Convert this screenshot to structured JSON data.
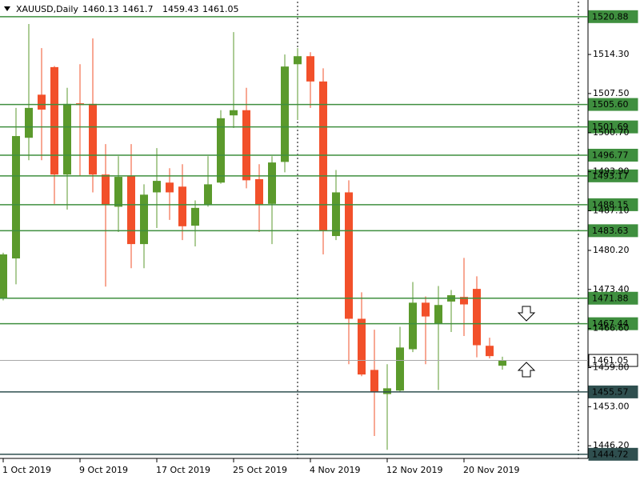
{
  "chart_data": {
    "type": "candlestick",
    "title": "XAUUSD,Daily",
    "categories": [
      "1 Oct 2019",
      null,
      null,
      null,
      null,
      null,
      "9 Oct 2019",
      null,
      null,
      null,
      null,
      null,
      "17 Oct 2019",
      null,
      null,
      null,
      null,
      null,
      "25 Oct 2019",
      null,
      null,
      null,
      null,
      null,
      "4 Nov 2019",
      null,
      null,
      null,
      null,
      null,
      "12 Nov 2019",
      null,
      null,
      null,
      null,
      null,
      "20 Nov 2019",
      null,
      null,
      null
    ],
    "open": [
      1471.9,
      1478.8,
      1499.8,
      1507.3,
      1512.1,
      1493.4,
      1505.8,
      1505.7,
      1493.4,
      1487.8,
      1493.1,
      1481.3,
      1490.3,
      1492.0,
      1491.3,
      1484.5,
      1488.1,
      1492.0,
      1503.7,
      1504.6,
      1492.6,
      1488.3,
      1495.6,
      1512.6,
      1514.0,
      1509.6,
      1482.7,
      1490.3,
      1468.3,
      1459.4,
      1455.2,
      1455.8,
      1463.0,
      1471.1,
      1467.4,
      1471.3,
      1472.1,
      1473.5,
      1463.6,
      1460.13
    ],
    "high": [
      1479.8,
      1505.0,
      1519.6,
      1515.4,
      1512.3,
      1508.5,
      1512.6,
      1517.1,
      1498.7,
      1496.6,
      1498.7,
      1491.7,
      1498.0,
      1494.5,
      1495.2,
      1488.9,
      1496.6,
      1504.6,
      1518.2,
      1508.5,
      1495.2,
      1496.6,
      1514.3,
      1515.4,
      1514.7,
      1511.9,
      1494.2,
      1492.4,
      1472.9,
      1466.4,
      1460.4,
      1466.9,
      1474.7,
      1472.2,
      1474.0,
      1473.3,
      1478.9,
      1475.7,
      1465.0,
      1461.7
    ],
    "low": [
      1471.5,
      1474.3,
      1495.9,
      1495.9,
      1488.3,
      1487.3,
      1493.1,
      1490.3,
      1473.9,
      1483.4,
      1477.1,
      1477.1,
      1484.1,
      1485.5,
      1482.0,
      1480.9,
      1487.8,
      1491.8,
      1501.5,
      1491.0,
      1483.4,
      1481.3,
      1493.8,
      1502.9,
      1505.0,
      1479.5,
      1482.0,
      1460.4,
      1458.3,
      1447.9,
      1445.5,
      1455.5,
      1462.5,
      1460.4,
      1455.9,
      1466.0,
      1465.3,
      1461.6,
      1461.4,
      1459.43
    ],
    "close": [
      1479.5,
      1500.1,
      1505.0,
      1504.7,
      1493.4,
      1505.7,
      1505.5,
      1493.4,
      1488.1,
      1493.0,
      1481.3,
      1489.9,
      1492.3,
      1490.3,
      1484.4,
      1487.6,
      1491.7,
      1503.2,
      1504.6,
      1492.4,
      1488.1,
      1495.5,
      1512.2,
      1514.0,
      1509.6,
      1483.7,
      1490.3,
      1468.3,
      1458.6,
      1455.5,
      1456.2,
      1463.3,
      1471.1,
      1468.7,
      1470.7,
      1472.4,
      1470.8,
      1463.7,
      1461.8,
      1461.05
    ],
    "up_color": "#5b9a2c",
    "down_color": "#f2502a",
    "ylim": [
      1444.0,
      1523.5
    ],
    "yticks": [
      {
        "value": 1514.3,
        "label": "1514.30"
      },
      {
        "value": 1507.5,
        "label": "1507.50"
      },
      {
        "value": 1500.7,
        "label": "1500.70"
      },
      {
        "value": 1493.9,
        "label": "1493.90"
      },
      {
        "value": 1487.1,
        "label": "1487.10"
      },
      {
        "value": 1480.2,
        "label": "1480.20"
      },
      {
        "value": 1473.4,
        "label": "1473.40"
      },
      {
        "value": 1466.6,
        "label": "1466.60"
      },
      {
        "value": 1459.8,
        "label": "1459.80"
      },
      {
        "value": 1453.0,
        "label": "1453.00"
      },
      {
        "value": 1446.2,
        "label": "1446.20"
      }
    ],
    "levels": [
      {
        "value": 1520.88,
        "label": "1520.88",
        "color": "#3f8f3f"
      },
      {
        "value": 1505.6,
        "label": "1505.60",
        "color": "#3f8f3f"
      },
      {
        "value": 1501.69,
        "label": "1501.69",
        "color": "#3f8f3f"
      },
      {
        "value": 1496.77,
        "label": "1496.77",
        "color": "#3f8f3f"
      },
      {
        "value": 1493.17,
        "label": "1493.17",
        "color": "#3f8f3f"
      },
      {
        "value": 1488.15,
        "label": "1488.15",
        "color": "#3f8f3f"
      },
      {
        "value": 1483.63,
        "label": "1483.63",
        "color": "#3f8f3f"
      },
      {
        "value": 1471.88,
        "label": "1471.88",
        "color": "#3f8f3f"
      },
      {
        "value": 1467.44,
        "label": "1467.44",
        "color": "#3f8f3f"
      },
      {
        "value": 1461.05,
        "label": "1461.05",
        "color": "#a9a9a9"
      },
      {
        "value": 1455.57,
        "label": "1455.57",
        "color": "#2f4f4f"
      },
      {
        "value": 1444.72,
        "label": "1444.72",
        "color": "#2f4f4f"
      }
    ]
  }
}
